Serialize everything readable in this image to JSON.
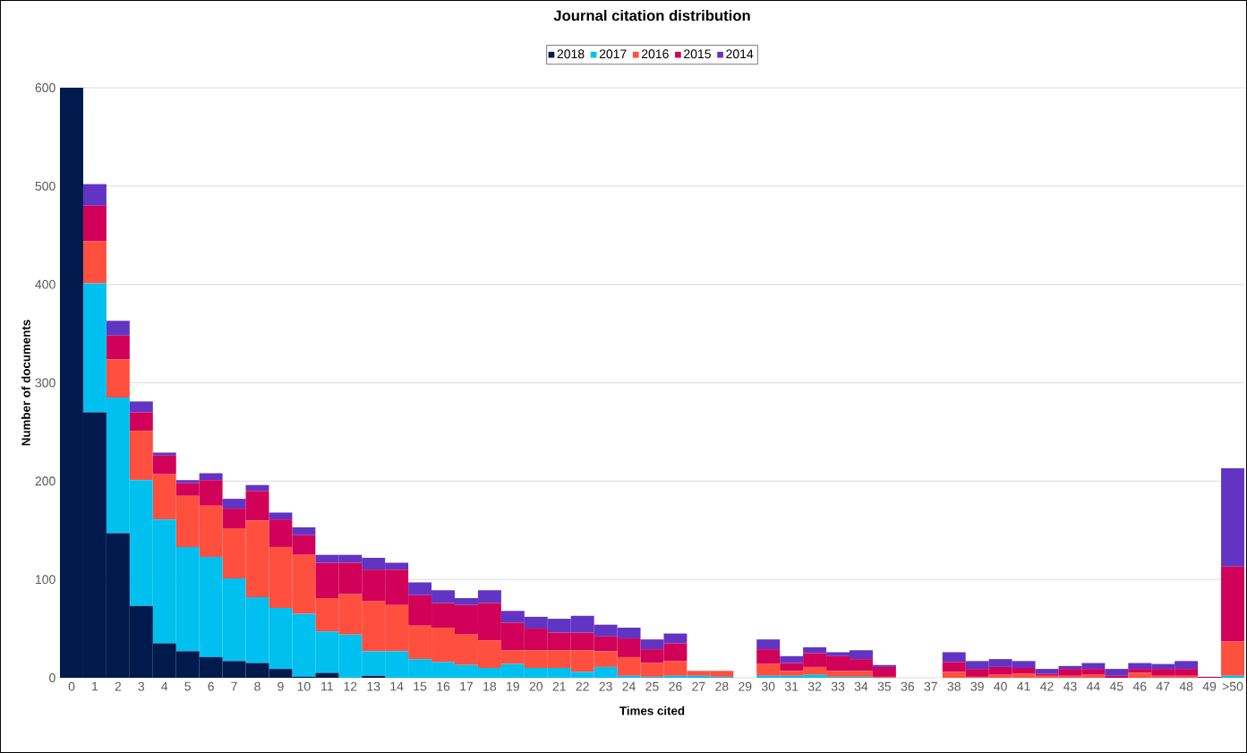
{
  "chart_data": {
    "type": "bar",
    "title": "Journal citation distribution",
    "xlabel": "Times cited",
    "ylabel": "Number of documents",
    "categories": [
      "0",
      "1",
      "2",
      "3",
      "4",
      "5",
      "6",
      "7",
      "8",
      "9",
      "10",
      "11",
      "12",
      "13",
      "14",
      "15",
      "16",
      "17",
      "18",
      "19",
      "20",
      "21",
      "22",
      "23",
      "24",
      "25",
      "26",
      "27",
      "28",
      "29",
      "30",
      "31",
      "32",
      "33",
      "34",
      "35",
      "36",
      "37",
      "38",
      "39",
      "40",
      "41",
      "42",
      "43",
      "44",
      "45",
      "46",
      "47",
      "48",
      "49",
      ">50"
    ],
    "stacked": true,
    "ylim": [
      0,
      600
    ],
    "yticks": [
      0,
      100,
      200,
      300,
      400,
      500,
      600
    ],
    "grid": "y",
    "legend": "top",
    "series": [
      {
        "name": "2018",
        "color": "#001a4d",
        "values": [
          600,
          270,
          147,
          73,
          35,
          27,
          21,
          17,
          15,
          9,
          1,
          5,
          0,
          2,
          0,
          0,
          0,
          0,
          0,
          0,
          0,
          0,
          0,
          0,
          0,
          0,
          0,
          0,
          0,
          null,
          0,
          0,
          0,
          0,
          0,
          0,
          null,
          null,
          0,
          0,
          0,
          0,
          0,
          0,
          0,
          0,
          0,
          0,
          0,
          0,
          0
        ]
      },
      {
        "name": "2017",
        "color": "#00c0f0",
        "values": [
          0,
          131,
          138,
          128,
          126,
          106,
          102,
          84,
          67,
          62,
          64,
          42,
          44,
          25,
          27,
          19,
          16,
          13,
          10,
          14,
          10,
          10,
          6,
          11,
          2,
          1,
          2,
          2,
          1,
          null,
          2,
          2,
          3,
          1,
          1,
          0,
          null,
          null,
          0,
          0,
          0,
          0,
          0,
          0,
          0,
          0,
          0,
          0,
          0,
          0,
          2
        ]
      },
      {
        "name": "2016",
        "color": "#ff4f3f",
        "values": [
          0,
          43,
          39,
          50,
          46,
          52,
          52,
          51,
          78,
          62,
          60,
          34,
          41,
          51,
          47,
          34,
          35,
          31,
          28,
          14,
          18,
          18,
          22,
          16,
          19,
          14,
          15,
          5,
          6,
          null,
          12,
          5,
          8,
          6,
          6,
          1,
          null,
          null,
          6,
          1,
          3,
          4,
          2,
          2,
          3,
          0,
          5,
          2,
          2,
          0,
          35
        ]
      },
      {
        "name": "2015",
        "color": "#d10058",
        "values": [
          0,
          36,
          24,
          19,
          19,
          13,
          26,
          20,
          30,
          28,
          20,
          36,
          32,
          32,
          36,
          31,
          25,
          30,
          38,
          28,
          22,
          18,
          18,
          15,
          19,
          14,
          18,
          0,
          0,
          null,
          15,
          8,
          14,
          15,
          12,
          10,
          null,
          null,
          10,
          8,
          8,
          6,
          2,
          7,
          6,
          2,
          4,
          7,
          7,
          1,
          76
        ]
      },
      {
        "name": "2014",
        "color": "#6234c4",
        "values": [
          0,
          22,
          15,
          11,
          3,
          3,
          7,
          10,
          6,
          7,
          8,
          8,
          8,
          12,
          7,
          13,
          13,
          7,
          13,
          12,
          12,
          14,
          17,
          12,
          11,
          10,
          10,
          0,
          0,
          null,
          10,
          7,
          6,
          4,
          9,
          2,
          null,
          null,
          10,
          8,
          8,
          7,
          5,
          3,
          6,
          7,
          6,
          5,
          8,
          0,
          100
        ]
      }
    ]
  }
}
